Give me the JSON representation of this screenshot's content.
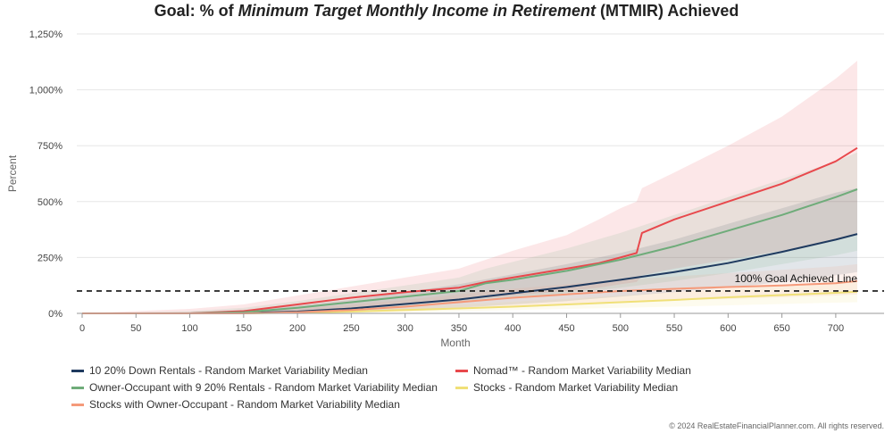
{
  "title": {
    "prefix": "Goal: % of ",
    "italic": "Minimum Target Monthly Income in Retirement",
    "suffix": " (MTMIR) Achieved"
  },
  "footer": "© 2024 RealEstateFinancialPlanner.com. All rights reserved.",
  "chart_data": {
    "type": "line",
    "title": "Goal: % of Minimum Target Monthly Income in Retirement (MTMIR) Achieved",
    "xlabel": "Month",
    "ylabel": "Percent",
    "xlim": [
      0,
      720
    ],
    "ylim": [
      0,
      1250
    ],
    "x_ticks": [
      0,
      50,
      100,
      150,
      200,
      250,
      300,
      350,
      400,
      450,
      500,
      550,
      600,
      650,
      700
    ],
    "y_ticks": [
      0,
      250,
      500,
      750,
      1000,
      1250
    ],
    "y_tick_labels": [
      "0%",
      "250%",
      "500%",
      "750%",
      "1,000%",
      "1,250%"
    ],
    "grid": "horizontal",
    "legend_position": "bottom",
    "reference_line": {
      "value": 100,
      "label": "100% Goal Achieved Line",
      "style": "dashed",
      "color": "#111111"
    },
    "series": [
      {
        "name": "10 20% Down Rentals - Random Market Variability Median",
        "color": "#1f3a5f",
        "x": [
          0,
          100,
          150,
          200,
          250,
          300,
          350,
          400,
          450,
          500,
          550,
          600,
          650,
          700,
          720
        ],
        "y": [
          0,
          0,
          2,
          8,
          22,
          42,
          62,
          90,
          118,
          150,
          185,
          225,
          275,
          330,
          355
        ],
        "band_lower": [
          0,
          0,
          0,
          0,
          5,
          15,
          25,
          40,
          55,
          75,
          95,
          115,
          140,
          170,
          185
        ],
        "band_upper": [
          0,
          5,
          15,
          35,
          60,
          95,
          130,
          175,
          220,
          270,
          330,
          400,
          470,
          540,
          560
        ]
      },
      {
        "name": "Nomad™ - Random Market Variability Median",
        "color": "#e8484c",
        "x": [
          0,
          100,
          150,
          200,
          250,
          300,
          350,
          375,
          400,
          450,
          480,
          500,
          515,
          520,
          550,
          600,
          650,
          700,
          720
        ],
        "y": [
          0,
          0,
          10,
          40,
          70,
          95,
          115,
          140,
          160,
          200,
          225,
          250,
          270,
          360,
          420,
          500,
          580,
          680,
          740
        ],
        "band_lower": [
          0,
          0,
          0,
          10,
          25,
          40,
          55,
          70,
          80,
          100,
          115,
          130,
          140,
          170,
          200,
          240,
          280,
          330,
          360
        ],
        "band_upper": [
          0,
          20,
          40,
          80,
          120,
          160,
          200,
          240,
          280,
          350,
          420,
          470,
          500,
          560,
          630,
          750,
          880,
          1050,
          1130
        ]
      },
      {
        "name": "Owner-Occupant with 9 20% Rentals - Random Market Variability Median",
        "color": "#6fac7a",
        "x": [
          0,
          100,
          150,
          200,
          250,
          300,
          350,
          375,
          400,
          450,
          500,
          550,
          600,
          650,
          700,
          720
        ],
        "y": [
          0,
          0,
          5,
          25,
          50,
          75,
          100,
          135,
          150,
          190,
          240,
          300,
          370,
          440,
          520,
          555
        ],
        "band_lower": [
          0,
          0,
          0,
          5,
          15,
          30,
          45,
          60,
          70,
          90,
          115,
          145,
          180,
          220,
          260,
          280
        ],
        "band_upper": [
          0,
          10,
          25,
          55,
          90,
          125,
          160,
          200,
          230,
          290,
          360,
          440,
          520,
          600,
          680,
          720
        ]
      },
      {
        "name": "Stocks - Random Market Variability Median",
        "color": "#f0e078",
        "x": [
          0,
          100,
          150,
          200,
          250,
          300,
          350,
          400,
          450,
          500,
          550,
          600,
          650,
          700,
          720
        ],
        "y": [
          0,
          0,
          0,
          3,
          8,
          15,
          22,
          30,
          40,
          50,
          60,
          72,
          82,
          92,
          97
        ],
        "band_lower": [
          0,
          0,
          0,
          0,
          2,
          5,
          10,
          15,
          20,
          25,
          30,
          36,
          42,
          48,
          50
        ],
        "band_upper": [
          0,
          2,
          5,
          10,
          18,
          28,
          40,
          52,
          65,
          80,
          95,
          110,
          125,
          140,
          148
        ]
      },
      {
        "name": "Stocks with Owner-Occupant - Random Market Variability Median",
        "color": "#f59a7a",
        "x": [
          0,
          100,
          150,
          200,
          250,
          300,
          350,
          400,
          450,
          500,
          550,
          600,
          650,
          700,
          720
        ],
        "y": [
          0,
          0,
          0,
          5,
          15,
          30,
          50,
          70,
          85,
          100,
          110,
          118,
          125,
          135,
          145
        ],
        "band_lower": [
          0,
          0,
          0,
          0,
          5,
          10,
          20,
          30,
          40,
          50,
          58,
          65,
          72,
          80,
          85
        ],
        "band_upper": [
          0,
          5,
          12,
          22,
          40,
          60,
          85,
          110,
          130,
          150,
          165,
          180,
          195,
          210,
          220
        ]
      }
    ]
  }
}
